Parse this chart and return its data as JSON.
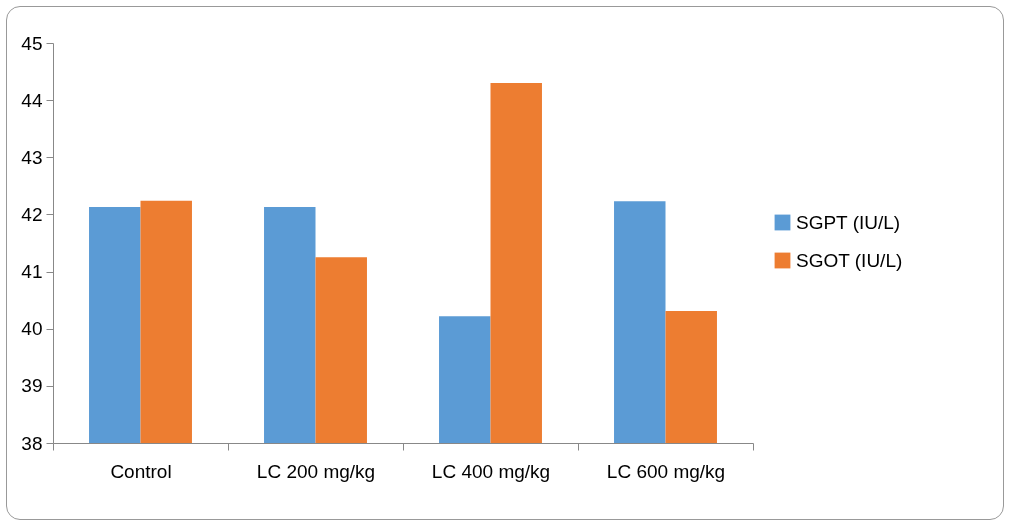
{
  "chart_data": {
    "type": "bar",
    "categories": [
      "Control",
      "LC  200 mg/kg",
      "LC  400 mg/kg",
      "LC   600 mg/kg"
    ],
    "series": [
      {
        "name": "SGPT (IU/L)",
        "color": "#5b9bd5",
        "values": [
          42.13,
          42.13,
          40.22,
          42.23
        ]
      },
      {
        "name": "SGOT (IU/L)",
        "color": "#ed7d31",
        "values": [
          42.24,
          41.25,
          44.3,
          40.31
        ]
      }
    ],
    "ylim": [
      38,
      45
    ],
    "yticks": [
      38,
      39,
      40,
      41,
      42,
      43,
      44,
      45
    ],
    "grid": false,
    "legend": "right"
  }
}
